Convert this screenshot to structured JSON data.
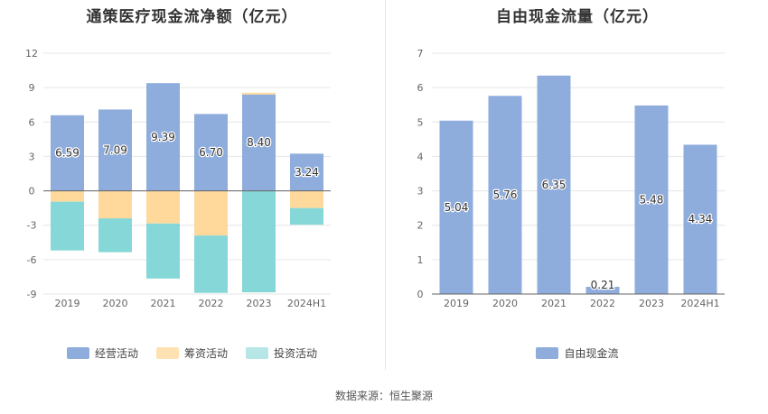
{
  "source": "数据来源：恒生聚源",
  "colors": {
    "op": "#8eacdc",
    "fin": "#ffd99b",
    "inv": "#86d7d7",
    "fcf": "#8eacdc"
  },
  "chart_data": [
    {
      "type": "bar",
      "stacked": true,
      "title": "通策医疗现金流净额（亿元）",
      "categories": [
        "2019",
        "2020",
        "2021",
        "2022",
        "2023",
        "2024H1"
      ],
      "ylim": [
        -9,
        12
      ],
      "yticks": [
        "12",
        "9",
        "6",
        "3",
        "0",
        "-3",
        "-6",
        "-9"
      ],
      "grid": true,
      "legend_position": "bottom",
      "series": [
        {
          "name": "经营活动",
          "values": [
            6.59,
            7.09,
            9.39,
            6.7,
            8.4,
            3.24
          ],
          "labels": [
            "6.59",
            "7.09",
            "9.39",
            "6.70",
            "8.40",
            "3.24"
          ]
        },
        {
          "name": "筹资活动",
          "values": [
            -0.95,
            -2.4,
            -2.85,
            -3.9,
            0.15,
            -1.5
          ]
        },
        {
          "name": "投资活动",
          "values": [
            -4.25,
            -2.95,
            -4.8,
            -5.0,
            -8.85,
            -1.45
          ]
        }
      ]
    },
    {
      "type": "bar",
      "title": "自由现金流量（亿元）",
      "categories": [
        "2019",
        "2020",
        "2021",
        "2022",
        "2023",
        "2024H1"
      ],
      "ylim": [
        0,
        7
      ],
      "yticks": [
        "7",
        "6",
        "5",
        "4",
        "3",
        "2",
        "1",
        "0"
      ],
      "grid": true,
      "legend_position": "bottom",
      "series": [
        {
          "name": "自由现金流",
          "values": [
            5.04,
            5.76,
            6.35,
            0.21,
            5.48,
            4.34
          ],
          "labels": [
            "5.04",
            "5.76",
            "6.35",
            "0.21",
            "5.48",
            "4.34"
          ]
        }
      ]
    }
  ]
}
